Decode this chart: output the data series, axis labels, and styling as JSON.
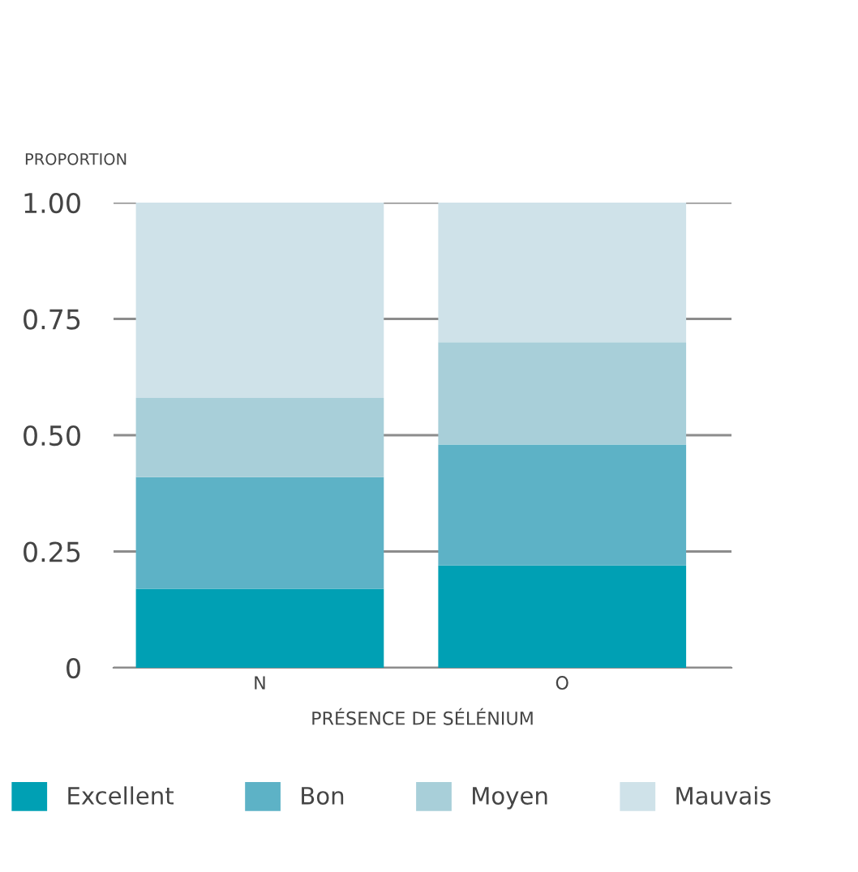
{
  "chart_data": {
    "type": "bar",
    "stacked": true,
    "ylabel": "PROPORTION",
    "xlabel": "PRÉSENCE DE SÉLÉNIUM",
    "categories": [
      "N",
      "O"
    ],
    "series": [
      {
        "name": "Excellent",
        "color": "#00a0b4",
        "values": [
          0.17,
          0.22
        ]
      },
      {
        "name": "Bon",
        "color": "#5db2c6",
        "values": [
          0.24,
          0.26
        ]
      },
      {
        "name": "Moyen",
        "color": "#a8cfd9",
        "values": [
          0.17,
          0.22
        ]
      },
      {
        "name": "Mauvais",
        "color": "#cfe2e9",
        "values": [
          0.42,
          0.3
        ]
      }
    ],
    "ylim": [
      0,
      1
    ],
    "yticks": [
      {
        "value": 0,
        "label": "0"
      },
      {
        "value": 0.25,
        "label": "0.25"
      },
      {
        "value": 0.5,
        "label": "0.50"
      },
      {
        "value": 0.75,
        "label": "0.75"
      },
      {
        "value": 1,
        "label": "1.00"
      }
    ],
    "grid": "y",
    "legend": "bottom"
  }
}
